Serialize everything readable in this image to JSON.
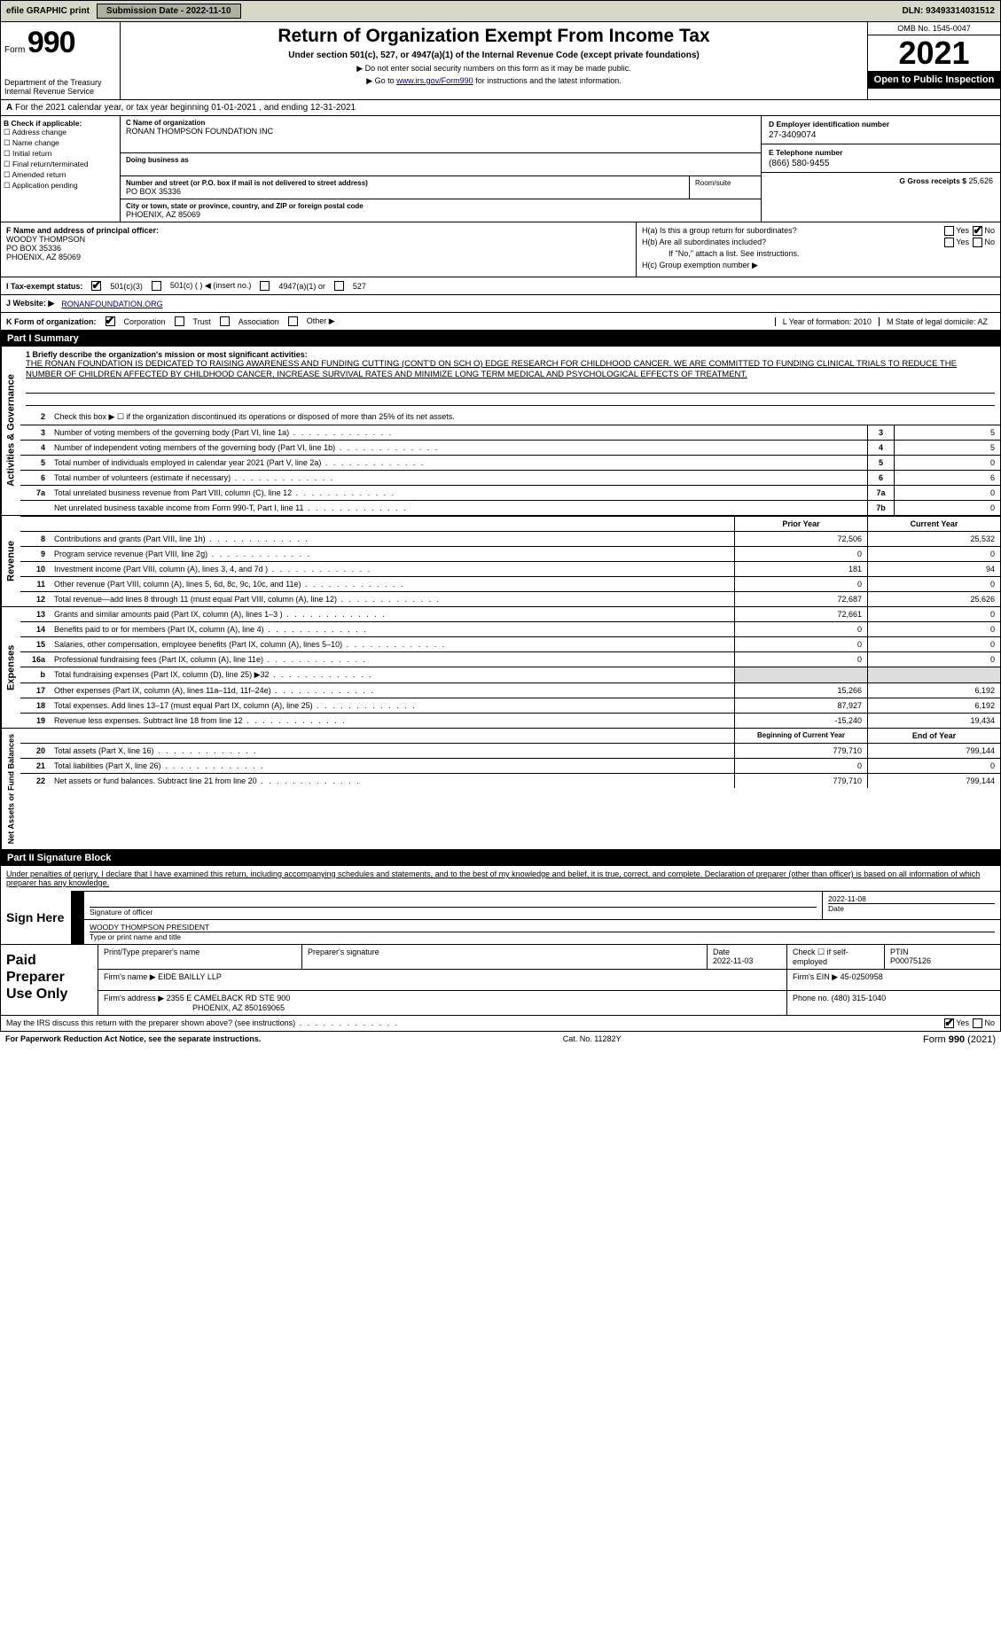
{
  "top": {
    "efile": "efile GRAPHIC print",
    "submission_label": "Submission Date - 2022-11-10",
    "dln": "DLN: 93493314031512"
  },
  "header": {
    "form_word": "Form",
    "form_num": "990",
    "dept": "Department of the Treasury",
    "irs": "Internal Revenue Service",
    "title": "Return of Organization Exempt From Income Tax",
    "sub": "Under section 501(c), 527, or 4947(a)(1) of the Internal Revenue Code (except private foundations)",
    "note1": "▶ Do not enter social security numbers on this form as it may be made public.",
    "note2_pre": "▶ Go to ",
    "note2_link": "www.irs.gov/Form990",
    "note2_post": " for instructions and the latest information.",
    "omb": "OMB No. 1545-0047",
    "year": "2021",
    "open": "Open to Public Inspection"
  },
  "period": "For the 2021 calendar year, or tax year beginning 01-01-2021   , and ending 12-31-2021",
  "sectionB": {
    "label": "B Check if applicable:",
    "items": [
      "Address change",
      "Name change",
      "Initial return",
      "Final return/terminated",
      "Amended return",
      "Application pending"
    ]
  },
  "sectionC": {
    "name_label": "C Name of organization",
    "name": "RONAN THOMPSON FOUNDATION INC",
    "dba_label": "Doing business as",
    "dba": "",
    "street_label": "Number and street (or P.O. box if mail is not delivered to street address)",
    "street": "PO BOX 35336",
    "room_label": "Room/suite",
    "city_label": "City or town, state or province, country, and ZIP or foreign postal code",
    "city": "PHOENIX, AZ  85069"
  },
  "sectionD": {
    "ein_label": "D Employer identification number",
    "ein": "27-3409074",
    "phone_label": "E Telephone number",
    "phone": "(866) 580-9455",
    "gross_label": "G Gross receipts $",
    "gross": "25,626"
  },
  "sectionF": {
    "label": "F  Name and address of principal officer:",
    "name": "WOODY THOMPSON",
    "addr1": "PO BOX 35336",
    "addr2": "PHOENIX, AZ  85069"
  },
  "sectionH": {
    "a": "H(a)  Is this a group return for subordinates?",
    "a_yes": "Yes",
    "a_no": "No",
    "b": "H(b)  Are all subordinates included?",
    "b_note": "If \"No,\" attach a list. See instructions.",
    "c": "H(c)  Group exemption number ▶"
  },
  "sectionI": {
    "label": "I   Tax-exempt status:",
    "opt1": "501(c)(3)",
    "opt2": "501(c) (   ) ◀ (insert no.)",
    "opt3": "4947(a)(1) or",
    "opt4": "527"
  },
  "sectionJ": {
    "label": "J   Website: ▶",
    "url": "RONANFOUNDATION.ORG"
  },
  "sectionK": {
    "label": "K Form of organization:",
    "opts": [
      "Corporation",
      "Trust",
      "Association",
      "Other ▶"
    ],
    "l": "L Year of formation: 2010",
    "m": "M State of legal domicile: AZ"
  },
  "part1": {
    "header": "Part I     Summary",
    "tabs": [
      "Activities & Governance",
      "Revenue",
      "Expenses",
      "Net Assets or Fund Balances"
    ],
    "line1_label": "1  Briefly describe the organization's mission or most significant activities:",
    "mission": "THE RONAN FOUNDATION IS DEDICATED TO RAISING AWARENESS AND FUNDING CUTTING (CONT'D ON SCH O) EDGE RESEARCH FOR CHILDHOOD CANCER. WE ARE COMMITTED TO FUNDING CLINICAL TRIALS TO REDUCE THE NUMBER OF CHILDREN AFFECTED BY CHILDHOOD CANCER, INCREASE SURVIVAL RATES AND MINIMIZE LONG TERM MEDICAL AND PSYCHOLOGICAL EFFECTS OF TREATMENT.",
    "line2": "Check this box ▶ ☐  if the organization discontinued its operations or disposed of more than 25% of its net assets.",
    "gov_lines": [
      {
        "n": "3",
        "t": "Number of voting members of the governing body (Part VI, line 1a)",
        "b": "3",
        "v": "5"
      },
      {
        "n": "4",
        "t": "Number of independent voting members of the governing body (Part VI, line 1b)",
        "b": "4",
        "v": "5"
      },
      {
        "n": "5",
        "t": "Total number of individuals employed in calendar year 2021 (Part V, line 2a)",
        "b": "5",
        "v": "0"
      },
      {
        "n": "6",
        "t": "Total number of volunteers (estimate if necessary)",
        "b": "6",
        "v": "6"
      },
      {
        "n": "7a",
        "t": "Total unrelated business revenue from Part VIII, column (C), line 12",
        "b": "7a",
        "v": "0"
      },
      {
        "n": "",
        "t": "Net unrelated business taxable income from Form 990-T, Part I, line 11",
        "b": "7b",
        "v": "0"
      }
    ],
    "col_headers": [
      "Prior Year",
      "Current Year"
    ],
    "rev_lines": [
      {
        "n": "8",
        "t": "Contributions and grants (Part VIII, line 1h)",
        "p": "72,506",
        "c": "25,532"
      },
      {
        "n": "9",
        "t": "Program service revenue (Part VIII, line 2g)",
        "p": "0",
        "c": "0"
      },
      {
        "n": "10",
        "t": "Investment income (Part VIII, column (A), lines 3, 4, and 7d )",
        "p": "181",
        "c": "94"
      },
      {
        "n": "11",
        "t": "Other revenue (Part VIII, column (A), lines 5, 6d, 8c, 9c, 10c, and 11e)",
        "p": "0",
        "c": "0"
      },
      {
        "n": "12",
        "t": "Total revenue—add lines 8 through 11 (must equal Part VIII, column (A), line 12)",
        "p": "72,687",
        "c": "25,626"
      }
    ],
    "exp_lines": [
      {
        "n": "13",
        "t": "Grants and similar amounts paid (Part IX, column (A), lines 1–3 )",
        "p": "72,661",
        "c": "0"
      },
      {
        "n": "14",
        "t": "Benefits paid to or for members (Part IX, column (A), line 4)",
        "p": "0",
        "c": "0"
      },
      {
        "n": "15",
        "t": "Salaries, other compensation, employee benefits (Part IX, column (A), lines 5–10)",
        "p": "0",
        "c": "0"
      },
      {
        "n": "16a",
        "t": "Professional fundraising fees (Part IX, column (A), line 11e)",
        "p": "0",
        "c": "0"
      },
      {
        "n": "b",
        "t": "Total fundraising expenses (Part IX, column (D), line 25) ▶32",
        "p": "",
        "c": "",
        "shade": true
      },
      {
        "n": "17",
        "t": "Other expenses (Part IX, column (A), lines 11a–11d, 11f–24e)",
        "p": "15,266",
        "c": "6,192"
      },
      {
        "n": "18",
        "t": "Total expenses. Add lines 13–17 (must equal Part IX, column (A), line 25)",
        "p": "87,927",
        "c": "6,192"
      },
      {
        "n": "19",
        "t": "Revenue less expenses. Subtract line 18 from line 12",
        "p": "-15,240",
        "c": "19,434"
      }
    ],
    "net_headers": [
      "Beginning of Current Year",
      "End of Year"
    ],
    "net_lines": [
      {
        "n": "20",
        "t": "Total assets (Part X, line 16)",
        "p": "779,710",
        "c": "799,144"
      },
      {
        "n": "21",
        "t": "Total liabilities (Part X, line 26)",
        "p": "0",
        "c": "0"
      },
      {
        "n": "22",
        "t": "Net assets or fund balances. Subtract line 21 from line 20",
        "p": "779,710",
        "c": "799,144"
      }
    ]
  },
  "part2": {
    "header": "Part II     Signature Block",
    "intro": "Under penalties of perjury, I declare that I have examined this return, including accompanying schedules and statements, and to the best of my knowledge and belief, it is true, correct, and complete. Declaration of preparer (other than officer) is based on all information of which preparer has any knowledge.",
    "sign_here": "Sign Here",
    "sig_officer": "Signature of officer",
    "sig_date": "2022-11-08",
    "date_label": "Date",
    "officer_name": "WOODY THOMPSON  PRESIDENT",
    "officer_label": "Type or print name and title",
    "paid_label": "Paid Preparer Use Only",
    "prep_name_label": "Print/Type preparer's name",
    "prep_sig_label": "Preparer's signature",
    "prep_date_label": "Date",
    "prep_date": "2022-11-03",
    "self_emp": "Check ☐ if self-employed",
    "ptin_label": "PTIN",
    "ptin": "P00075126",
    "firm_name_label": "Firm's name    ▶",
    "firm_name": "EIDE BAILLY LLP",
    "firm_ein_label": "Firm's EIN ▶",
    "firm_ein": "45-0250958",
    "firm_addr_label": "Firm's address ▶",
    "firm_addr1": "2355 E CAMELBACK RD STE 900",
    "firm_addr2": "PHOENIX, AZ  850169065",
    "firm_phone_label": "Phone no.",
    "firm_phone": "(480) 315-1040",
    "discuss": "May the IRS discuss this return with the preparer shown above? (see instructions)",
    "yes": "Yes",
    "no": "No"
  },
  "footer": {
    "pra": "For Paperwork Reduction Act Notice, see the separate instructions.",
    "cat": "Cat. No. 11282Y",
    "form": "Form 990 (2021)"
  }
}
